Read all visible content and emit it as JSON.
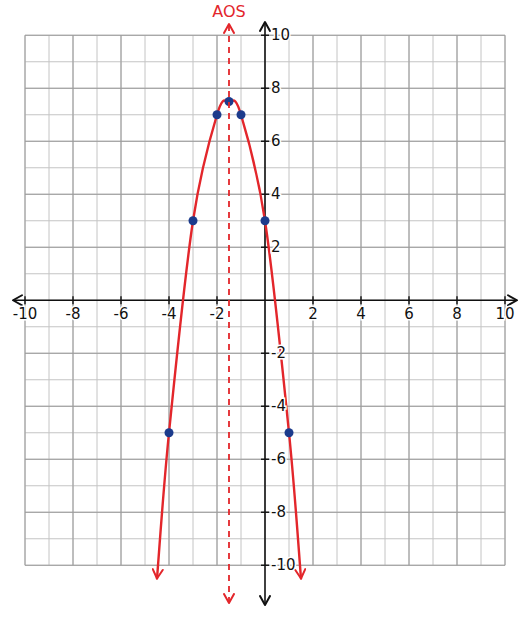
{
  "chart_data": {
    "type": "line",
    "xlim": [
      -10.5,
      10.5
    ],
    "ylim": [
      -11.5,
      10.5
    ],
    "xticks": [
      -10,
      -8,
      -6,
      -4,
      -2,
      2,
      4,
      6,
      8,
      10
    ],
    "yticks": [
      -10,
      -8,
      -6,
      -4,
      -2,
      2,
      4,
      6,
      8,
      10
    ],
    "grid": true,
    "series": [
      {
        "type": "line",
        "color": "#e3262b",
        "marker": "none",
        "x": [
          -4.5,
          -4,
          -3,
          -2,
          -1.5,
          -1,
          0,
          1,
          1.5
        ],
        "values": [
          -10.5,
          -5,
          3,
          7,
          7.5,
          7,
          3,
          -5,
          -10.5
        ]
      },
      {
        "type": "scatter",
        "color": "#1c3b8c",
        "marker": "circle",
        "x": [
          -4,
          -3,
          -2,
          -1.5,
          -1,
          0,
          1
        ],
        "values": [
          -5,
          3,
          7,
          7.5,
          7,
          3,
          -5
        ]
      }
    ],
    "annotations": [
      {
        "text": "AOS",
        "x": -1.5,
        "color": "#e3262b",
        "line_style": "dashed"
      }
    ]
  }
}
